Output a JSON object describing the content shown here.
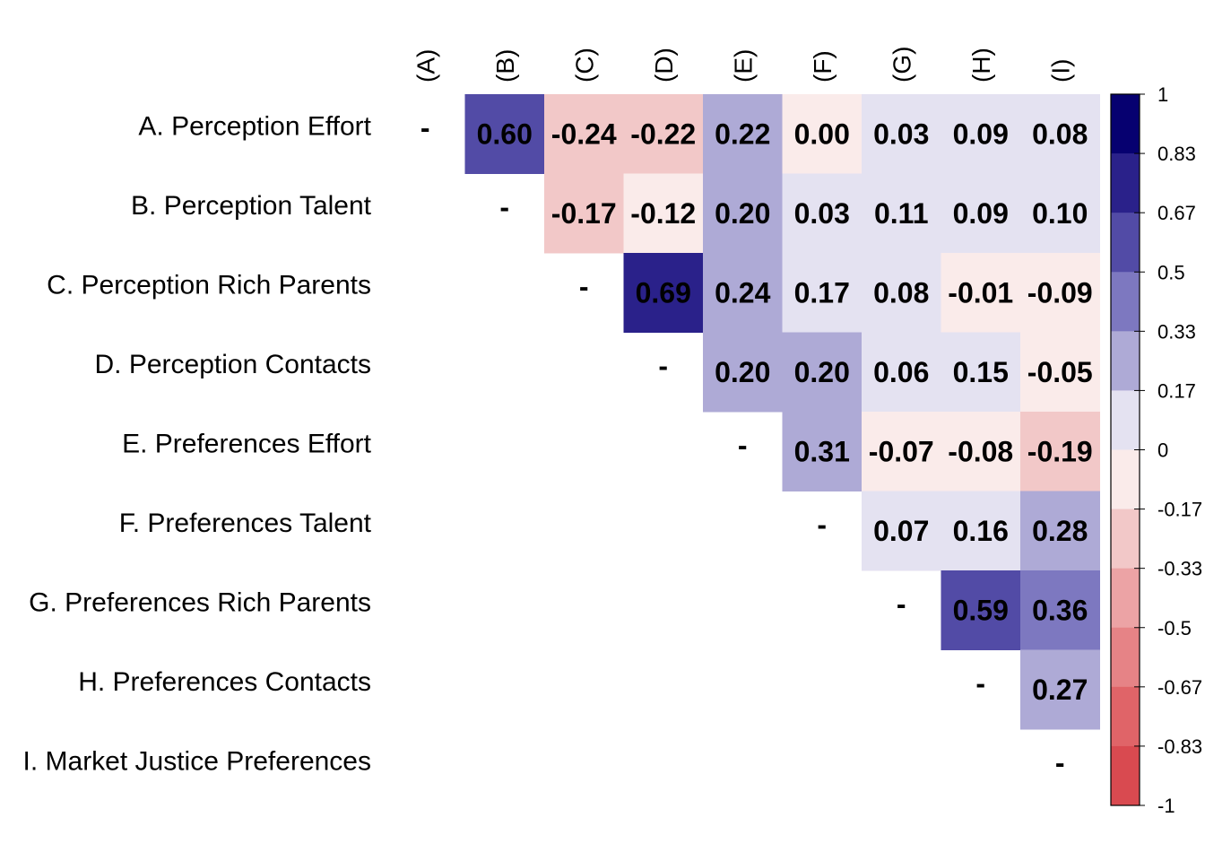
{
  "chart_data": {
    "type": "heatmap",
    "title": "",
    "row_labels": [
      "A. Perception Effort",
      "B. Perception Talent",
      "C. Perception Rich Parents",
      "D. Perception Contacts",
      "E. Preferences Effort",
      "F. Preferences Talent",
      "G. Preferences Rich Parents",
      "H. Preferences Contacts",
      "I. Market Justice Preferences"
    ],
    "column_labels": [
      "(A)",
      "(B)",
      "(C)",
      "(D)",
      "(E)",
      "(F)",
      "(G)",
      "(H)",
      "(I)"
    ],
    "diagonal_label": "-",
    "matrix": [
      [
        null,
        0.6,
        -0.24,
        -0.22,
        0.22,
        0.0,
        0.03,
        0.09,
        0.08
      ],
      [
        null,
        null,
        -0.17,
        -0.12,
        0.2,
        0.03,
        0.11,
        0.09,
        0.1
      ],
      [
        null,
        null,
        null,
        0.69,
        0.24,
        0.17,
        0.08,
        -0.01,
        -0.09
      ],
      [
        null,
        null,
        null,
        null,
        0.2,
        0.2,
        0.06,
        0.15,
        -0.05
      ],
      [
        null,
        null,
        null,
        null,
        null,
        0.31,
        -0.07,
        -0.08,
        -0.19
      ],
      [
        null,
        null,
        null,
        null,
        null,
        null,
        0.07,
        0.16,
        0.28
      ],
      [
        null,
        null,
        null,
        null,
        null,
        null,
        null,
        0.59,
        0.36
      ],
      [
        null,
        null,
        null,
        null,
        null,
        null,
        null,
        null,
        0.27
      ],
      [
        null,
        null,
        null,
        null,
        null,
        null,
        null,
        null,
        null
      ]
    ],
    "value_labels": [
      [
        "",
        "0.60",
        "-0.24",
        "-0.22",
        "0.22",
        "0.00",
        "0.03",
        "0.09",
        "0.08"
      ],
      [
        "",
        "",
        "-0.17",
        "-0.12",
        "0.20",
        "0.03",
        "0.11",
        "0.09",
        "0.10"
      ],
      [
        "",
        "",
        "",
        "0.69",
        "0.24",
        "0.17",
        "0.08",
        "-0.01",
        "-0.09"
      ],
      [
        "",
        "",
        "",
        "",
        "0.20",
        "0.20",
        "0.06",
        "0.15",
        "-0.05"
      ],
      [
        "",
        "",
        "",
        "",
        "",
        "0.31",
        "-0.07",
        "-0.08",
        "-0.19"
      ],
      [
        "",
        "",
        "",
        "",
        "",
        "",
        "0.07",
        "0.16",
        "0.28"
      ],
      [
        "",
        "",
        "",
        "",
        "",
        "",
        "",
        "0.59",
        "0.36"
      ],
      [
        "",
        "",
        "",
        "",
        "",
        "",
        "",
        "",
        "0.27"
      ],
      [
        "",
        "",
        "",
        "",
        "",
        "",
        "",
        "",
        ""
      ]
    ],
    "color_scale": {
      "range": [
        -1,
        1
      ],
      "breaks": [
        -1,
        -0.83,
        -0.67,
        -0.5,
        -0.33,
        -0.17,
        0,
        0.17,
        0.33,
        0.5,
        0.67,
        0.83,
        1
      ],
      "tick_labels": [
        "1",
        "0.83",
        "0.67",
        "0.5",
        "0.33",
        "0.17",
        "0",
        "-0.17",
        "-0.33",
        "-0.5",
        "-0.67",
        "-0.83",
        "-1"
      ],
      "colors_low_to_high": [
        "#d94a50",
        "#e06468",
        "#e68386",
        "#eca3a5",
        "#f2c8c8",
        "#faebea",
        "#e4e2f1",
        "#aeaad6",
        "#7d78c0",
        "#524ba6",
        "#2a218a",
        "#060070"
      ]
    },
    "legend_position": "right",
    "grid": false
  }
}
